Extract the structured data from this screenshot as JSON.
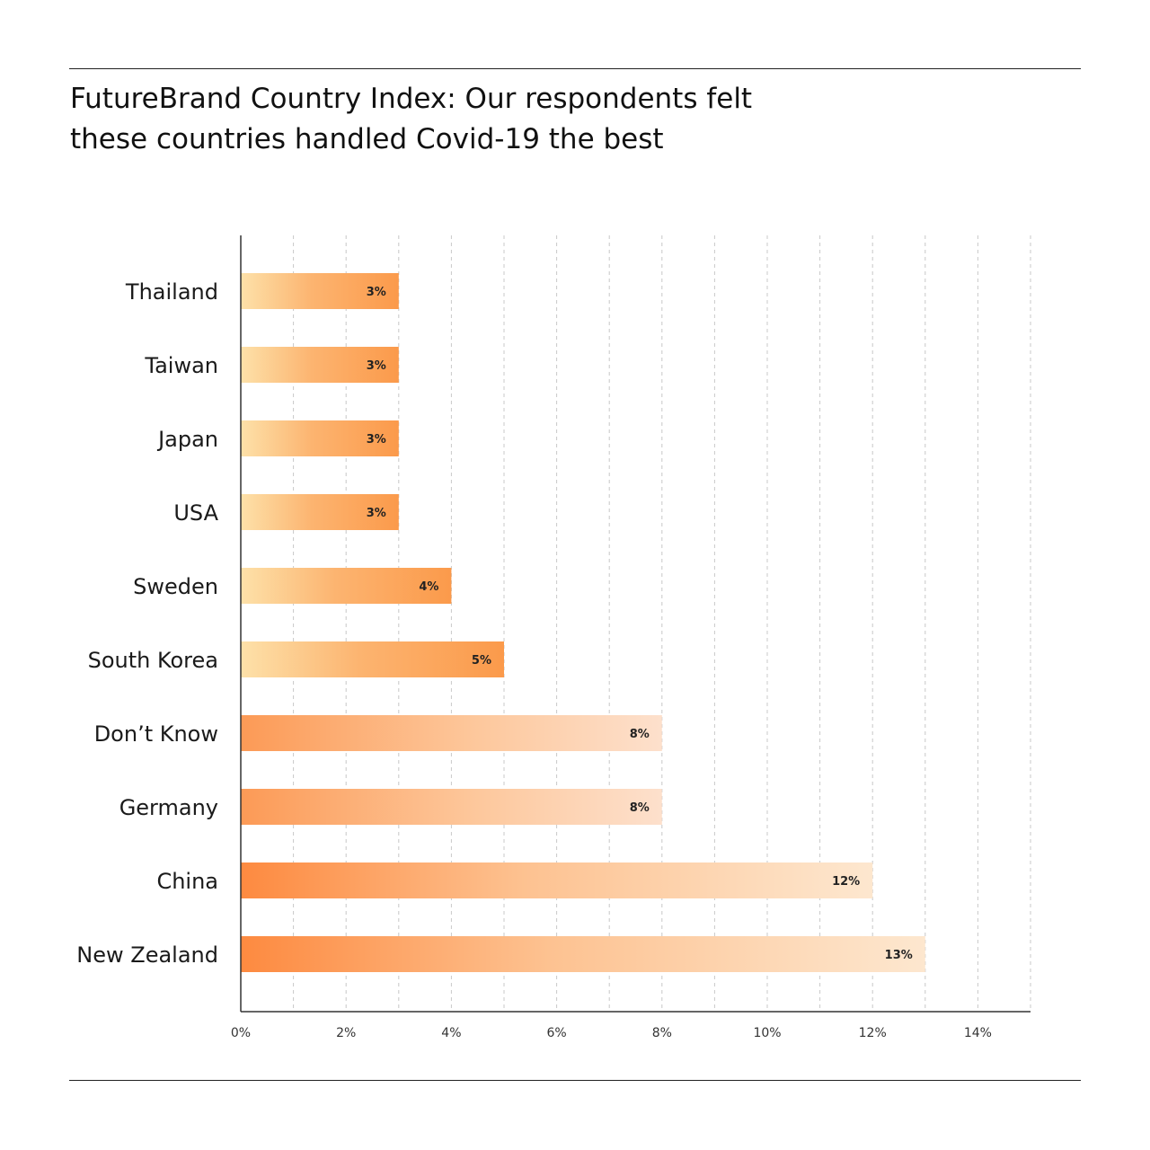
{
  "title_lines": [
    "FutureBrand Country Index: Our respondents felt",
    "these countries handled Covid-19 the best"
  ],
  "chart_data": {
    "type": "bar",
    "orientation": "horizontal",
    "categories": [
      "Thailand",
      "Taiwan",
      "Japan",
      "USA",
      "Sweden",
      "South Korea",
      "Don’t Know",
      "Germany",
      "China",
      "New Zealand"
    ],
    "values": [
      3,
      3,
      3,
      3,
      4,
      5,
      8,
      8,
      12,
      13
    ],
    "value_labels": [
      "3%",
      "3%",
      "3%",
      "3%",
      "4%",
      "5%",
      "8%",
      "8%",
      "12%",
      "13%"
    ],
    "x_ticks": [
      0,
      2,
      4,
      6,
      8,
      10,
      12,
      14
    ],
    "x_tick_labels": [
      "0%",
      "2%",
      "4%",
      "6%",
      "8%",
      "10%",
      "12%",
      "14%"
    ],
    "xlim": [
      0,
      15
    ],
    "grid": "vertical dashed, every 1%",
    "colors": {
      "bar_orange": "#ff8c3a",
      "bar_light": "#fde6c2",
      "axis": "#333333",
      "grid": "#c8c8c8"
    }
  }
}
